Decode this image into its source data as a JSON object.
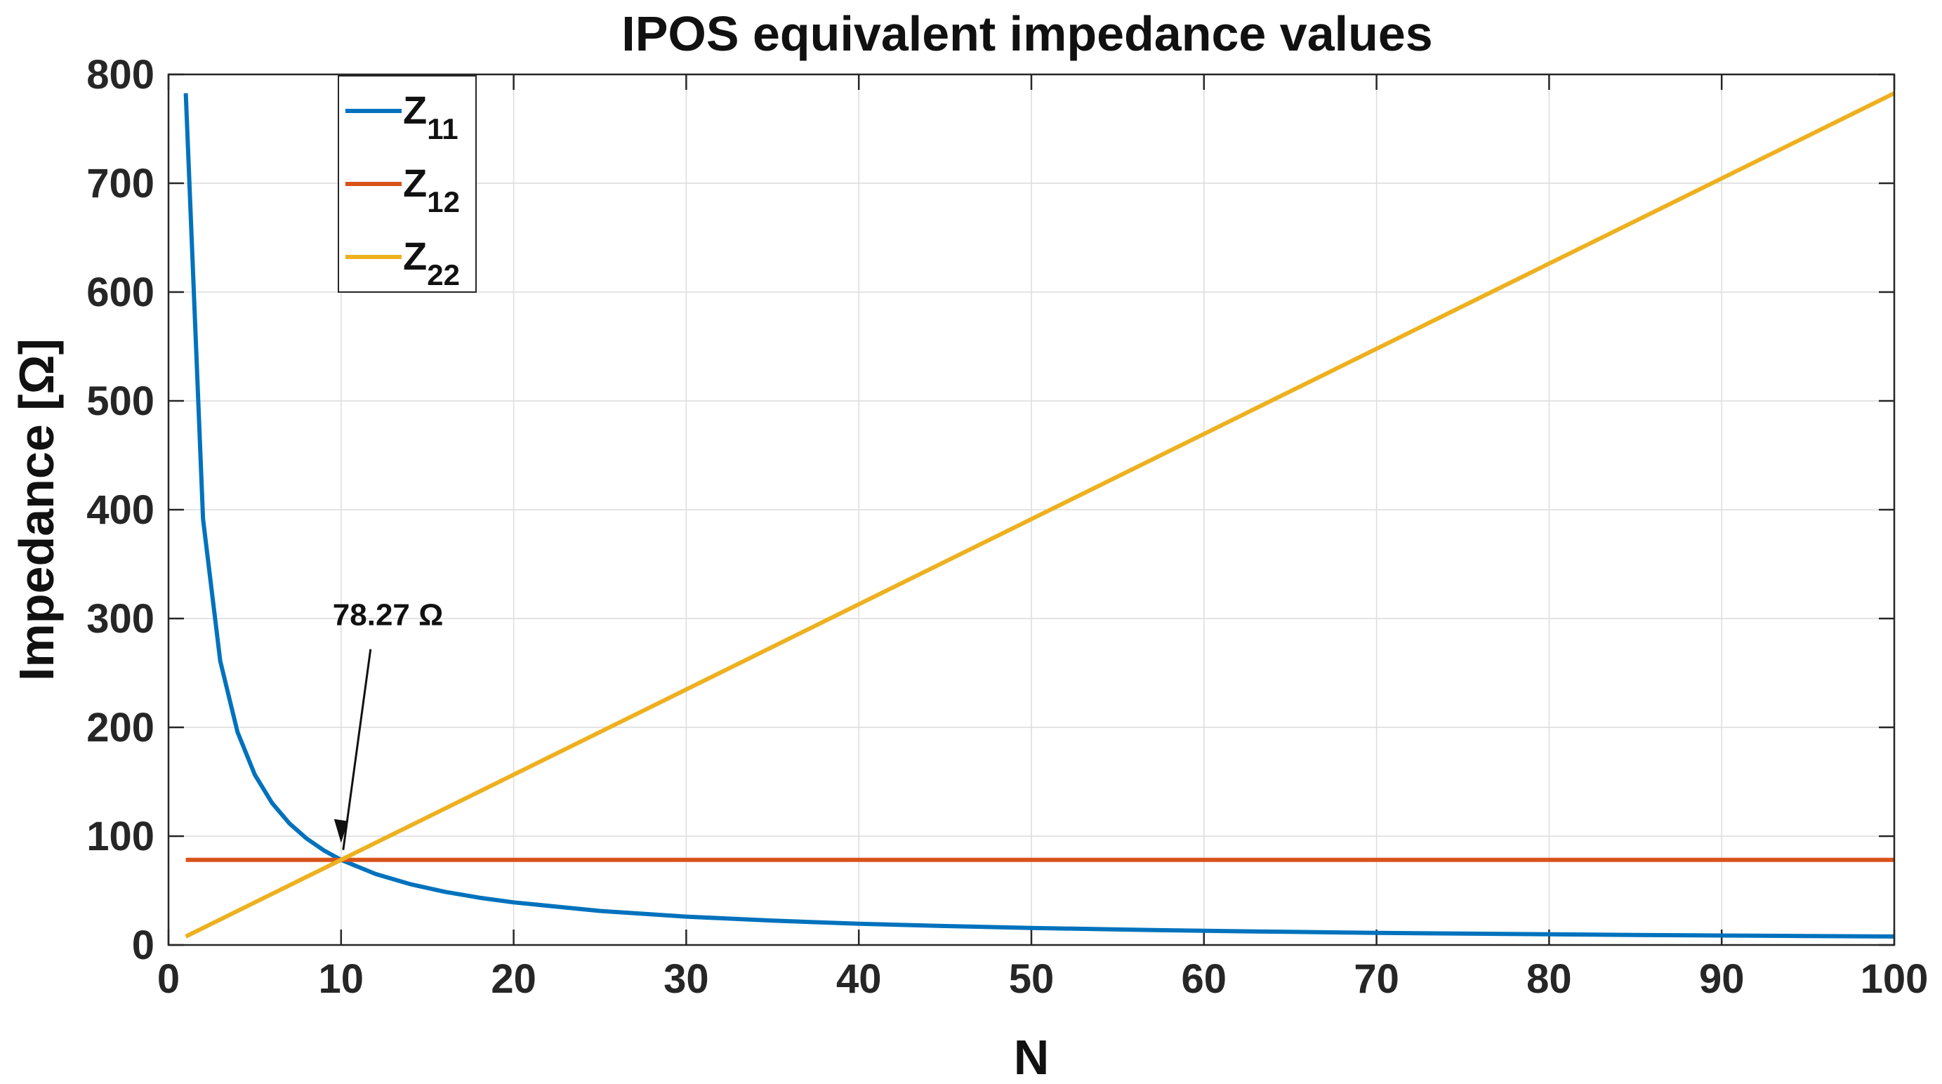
{
  "chart_data": {
    "type": "line",
    "title": "IPOS equivalent impedance values",
    "xlabel": "N",
    "ylabel": "Impedance [Ω]",
    "xlim": [
      0,
      100
    ],
    "ylim": [
      0,
      800
    ],
    "xticks": [
      0,
      10,
      20,
      30,
      40,
      50,
      60,
      70,
      80,
      90,
      100
    ],
    "yticks": [
      0,
      100,
      200,
      300,
      400,
      500,
      600,
      700,
      800
    ],
    "grid": true,
    "legend_position": "top-left",
    "series": [
      {
        "name": "Z11",
        "label_main": "Z",
        "label_sub": "11",
        "color": "#0072BD",
        "x": [
          1,
          2,
          3,
          4,
          5,
          6,
          7,
          8,
          9,
          10,
          12,
          14,
          16,
          18,
          20,
          25,
          30,
          35,
          40,
          45,
          50,
          55,
          60,
          65,
          70,
          75,
          80,
          85,
          90,
          95,
          100
        ],
        "y": [
          782.7,
          391.35,
          260.9,
          195.68,
          156.54,
          130.45,
          111.81,
          97.84,
          86.97,
          78.27,
          65.23,
          55.91,
          48.92,
          43.48,
          39.14,
          31.31,
          26.09,
          22.36,
          19.57,
          17.39,
          15.65,
          14.23,
          13.05,
          12.04,
          11.18,
          10.44,
          9.78,
          9.21,
          8.7,
          8.24,
          7.83
        ]
      },
      {
        "name": "Z12",
        "label_main": "Z",
        "label_sub": "12",
        "color": "#D95319",
        "x": [
          1,
          100
        ],
        "y": [
          78.27,
          78.27
        ]
      },
      {
        "name": "Z22",
        "label_main": "Z",
        "label_sub": "22",
        "color": "#EDB120",
        "x": [
          1,
          100
        ],
        "y": [
          7.827,
          782.7
        ]
      }
    ],
    "annotations": [
      {
        "text": "78.27 Ω",
        "point": [
          10,
          78.27
        ]
      }
    ]
  }
}
